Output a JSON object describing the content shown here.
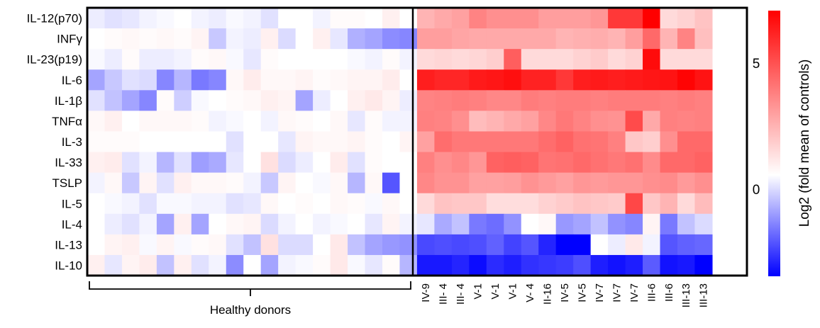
{
  "chart_data": {
    "type": "heatmap",
    "rows": [
      "IL-12(p70)",
      "INFγ",
      "IL-23(p19)",
      "IL-6",
      "IL-1β",
      "TNFα",
      "IL-3",
      "IL-33",
      "TSLP",
      "IL-5",
      "IL-4",
      "IL-13",
      "IL-10"
    ],
    "healthy_count": 19,
    "patient_columns": [
      "IV-9",
      "III- 4",
      "III- 4",
      "V-1",
      "V-1",
      "V-1",
      "V- 4",
      "II-16",
      "IV-5",
      "IV-5",
      "IV-7",
      "IV-7",
      "IV-7",
      "III-6",
      "III-6",
      "III-13",
      "III-13"
    ],
    "group_label": "Healthy donors",
    "colorbar": {
      "label": "Log2 (fold mean of controls)",
      "min": -4.2,
      "max": 6.8,
      "ticks": [
        0,
        5
      ],
      "low_color": "#0000ff",
      "mid_color": "#ffffff",
      "high_color": "#ff0000"
    },
    "values": {
      "healthy": [
        [
          -0.3,
          -0.5,
          -0.4,
          -0.2,
          -0.1,
          0.0,
          -0.2,
          -0.3,
          -0.1,
          -0.2,
          -0.5,
          0.0,
          0.0,
          -0.2,
          0.1,
          0.1,
          0.0,
          0.4,
          0.0
        ],
        [
          0.0,
          0.1,
          0.2,
          0.1,
          0.2,
          0.1,
          0.3,
          -0.9,
          -0.2,
          -0.3,
          0.4,
          -0.6,
          0.0,
          0.4,
          -0.4,
          -1.3,
          -1.5,
          -1.9,
          -2.0
        ],
        [
          -0.1,
          -0.3,
          0.1,
          -0.3,
          -0.3,
          -0.2,
          0.1,
          0.2,
          -0.1,
          -0.4,
          0.1,
          0.0,
          0.0,
          0.0,
          0.0,
          -0.1,
          -0.2,
          0.1,
          -0.2
        ],
        [
          -1.5,
          -0.9,
          -0.5,
          -0.6,
          -2.0,
          -1.2,
          -2.2,
          -2.0,
          0.2,
          0.5,
          0.2,
          0.2,
          0.3,
          0.1,
          0.2,
          0.3,
          0.3,
          0.5,
          0.0
        ],
        [
          -0.5,
          -1.0,
          -1.5,
          -2.0,
          0.1,
          -0.8,
          -0.1,
          0.0,
          0.1,
          0.2,
          0.4,
          0.3,
          -1.5,
          -0.3,
          0.0,
          0.4,
          0.6,
          0.3,
          -0.3
        ],
        [
          0.2,
          0.4,
          0.0,
          0.2,
          0.2,
          0.2,
          0.1,
          -0.2,
          -0.1,
          0.0,
          -0.2,
          0.2,
          0.1,
          0.0,
          0.2,
          -0.4,
          0.1,
          -0.2,
          -0.2
        ],
        [
          0.1,
          0.1,
          0.1,
          0.0,
          0.0,
          0.0,
          0.0,
          0.0,
          -0.5,
          0.0,
          0.0,
          -0.4,
          0.3,
          0.2,
          0.2,
          0.3,
          0.1,
          0.0,
          0.3
        ],
        [
          0.4,
          0.5,
          -0.5,
          -0.2,
          -1.2,
          -0.5,
          -1.6,
          -1.4,
          -0.4,
          0.0,
          0.8,
          -0.6,
          -0.3,
          0.0,
          0.5,
          -0.5,
          0.1,
          0.0,
          0.0
        ],
        [
          -0.2,
          0.2,
          -0.9,
          0.3,
          -0.5,
          0.4,
          0.2,
          0.2,
          0.1,
          -0.2,
          -0.9,
          0.3,
          0.0,
          -0.1,
          0.2,
          -1.2,
          0.2,
          -2.8,
          0.0
        ],
        [
          0.0,
          -0.1,
          -0.2,
          -0.5,
          -0.1,
          -0.1,
          -0.2,
          -0.2,
          -0.5,
          -0.4,
          0.2,
          0.0,
          0.1,
          0.0,
          0.2,
          0.1,
          -0.1,
          0.2,
          0.0
        ],
        [
          0.0,
          -0.3,
          -0.5,
          -0.2,
          -1.5,
          0.4,
          -1.5,
          0.0,
          0.2,
          0.3,
          -0.6,
          -0.2,
          0.0,
          -0.2,
          -0.1,
          0.0,
          -0.4,
          0.3,
          -0.2
        ],
        [
          0.0,
          0.3,
          0.4,
          -0.1,
          0.3,
          -0.1,
          0.1,
          0.2,
          -0.5,
          -1.0,
          0.8,
          -0.6,
          -0.6,
          0.0,
          0.6,
          -1.0,
          -1.5,
          -1.7,
          -1.8
        ],
        [
          0.4,
          -0.4,
          0.3,
          0.5,
          -1.0,
          0.4,
          -0.5,
          -0.2,
          -1.9,
          0.0,
          -1.5,
          -0.2,
          -0.1,
          0.1,
          0.6,
          -0.1,
          -0.4,
          0.1,
          -1.2
        ]
      ],
      "patients": [
        [
          2.0,
          2.3,
          2.5,
          3.3,
          3.0,
          3.0,
          3.0,
          2.6,
          2.6,
          2.6,
          2.8,
          5.3,
          5.3,
          6.8,
          1.0,
          1.2,
          1.6
        ],
        [
          2.6,
          2.6,
          2.4,
          2.3,
          2.3,
          2.3,
          2.3,
          2.3,
          2.0,
          2.1,
          2.2,
          2.0,
          2.6,
          4.0,
          2.0,
          3.3,
          1.7
        ],
        [
          1.0,
          1.1,
          1.0,
          1.1,
          1.3,
          4.3,
          1.0,
          1.0,
          1.0,
          1.2,
          1.4,
          1.0,
          1.2,
          6.5,
          1.0,
          1.0,
          1.0
        ],
        [
          6.0,
          5.8,
          5.8,
          6.1,
          6.2,
          6.4,
          5.9,
          5.9,
          5.3,
          6.0,
          6.1,
          6.0,
          6.1,
          6.2,
          6.3,
          6.7,
          6.3
        ],
        [
          3.3,
          3.4,
          3.5,
          3.4,
          3.2,
          3.2,
          3.5,
          3.4,
          3.5,
          3.5,
          3.4,
          3.5,
          3.5,
          3.5,
          3.4,
          3.5,
          3.4
        ],
        [
          3.4,
          3.3,
          3.0,
          1.8,
          2.0,
          2.3,
          2.5,
          3.2,
          3.6,
          3.3,
          3.0,
          2.9,
          4.8,
          2.3,
          3.4,
          3.3,
          3.4
        ],
        [
          2.5,
          3.9,
          3.6,
          3.6,
          3.6,
          3.6,
          3.6,
          3.9,
          4.2,
          3.8,
          3.7,
          3.4,
          1.5,
          1.3,
          3.0,
          4.0,
          4.0
        ],
        [
          3.4,
          3.0,
          3.2,
          2.8,
          4.2,
          4.3,
          4.2,
          3.7,
          3.8,
          4.0,
          3.8,
          3.6,
          3.8,
          3.1,
          4.0,
          4.0,
          4.2
        ],
        [
          3.2,
          2.9,
          2.9,
          2.5,
          2.5,
          2.6,
          2.9,
          2.7,
          2.5,
          2.8,
          2.7,
          2.8,
          2.8,
          3.0,
          3.1,
          2.7,
          3.0
        ],
        [
          1.0,
          1.6,
          1.5,
          1.5,
          0.9,
          0.9,
          0.9,
          1.2,
          1.4,
          1.6,
          1.5,
          1.4,
          4.9,
          1.5,
          2.0,
          1.0,
          1.8
        ],
        [
          -0.4,
          -1.4,
          -1.0,
          -2.2,
          -2.4,
          -1.8,
          0.0,
          0.2,
          -1.7,
          -1.5,
          -1.0,
          -1.8,
          -2.0,
          0.3,
          -2.2,
          -1.0,
          -0.6
        ],
        [
          -3.0,
          -2.9,
          -3.0,
          -2.9,
          -2.6,
          -3.1,
          -2.8,
          -3.6,
          -4.2,
          -4.2,
          0.0,
          -0.3,
          0.6,
          -0.2,
          -2.8,
          -2.6,
          -2.5
        ],
        [
          -3.8,
          -3.8,
          -3.6,
          -4.0,
          -3.5,
          -3.7,
          -3.4,
          -3.3,
          -3.2,
          -2.9,
          -3.7,
          -3.9,
          -3.7,
          -2.7,
          -3.9,
          -3.8,
          -4.2
        ]
      ]
    }
  }
}
